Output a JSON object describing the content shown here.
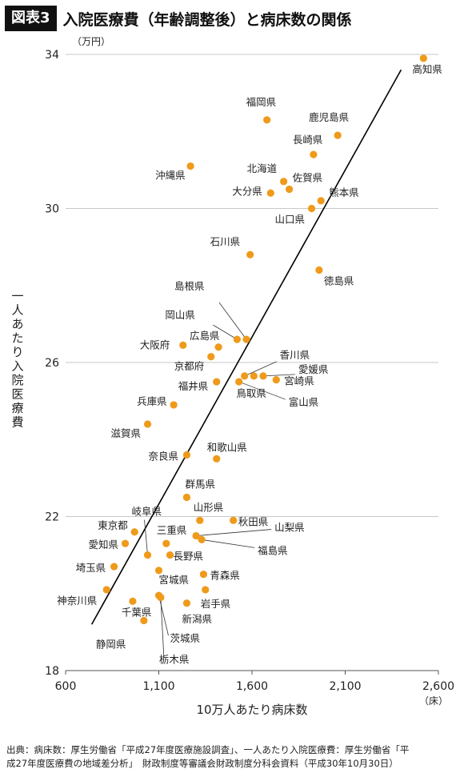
{
  "header": {
    "badge": "図表3",
    "title": "入院医療費（年齢調整後）と病床数の関係"
  },
  "chart_data": {
    "type": "scatter",
    "title": "入院医療費（年齢調整後）と病床数の関係",
    "xlabel": "10万人あたり病床数",
    "x_unit": "（床）",
    "ylabel": "一人あたり入院医療費",
    "y_unit": "（万円）",
    "xlim": [
      600,
      2600
    ],
    "ylim": [
      18,
      34
    ],
    "xticks": [
      600,
      1100,
      1600,
      2100,
      2600
    ],
    "xtick_labels": [
      "600",
      "1,100",
      "1,600",
      "2,100",
      "2,600"
    ],
    "yticks": [
      18,
      22,
      26,
      30,
      34
    ],
    "grid": "horizontal",
    "trendline": {
      "x": [
        740,
        2400
      ],
      "y": [
        19.2,
        33.6
      ]
    },
    "points": [
      {
        "label": "高知県",
        "x": 2520,
        "y": 33.9
      },
      {
        "label": "福岡県",
        "x": 1680,
        "y": 32.3
      },
      {
        "label": "鹿児島県",
        "x": 2060,
        "y": 31.9
      },
      {
        "label": "長崎県",
        "x": 1930,
        "y": 31.4
      },
      {
        "label": "沖縄県",
        "x": 1270,
        "y": 31.1
      },
      {
        "label": "北海道",
        "x": 1770,
        "y": 30.7
      },
      {
        "label": "佐賀県",
        "x": 1800,
        "y": 30.5
      },
      {
        "label": "大分県",
        "x": 1700,
        "y": 30.4
      },
      {
        "label": "熊本県",
        "x": 1970,
        "y": 30.2
      },
      {
        "label": "山口県",
        "x": 1920,
        "y": 30.0
      },
      {
        "label": "石川県",
        "x": 1590,
        "y": 28.8
      },
      {
        "label": "徳島県",
        "x": 1960,
        "y": 28.4
      },
      {
        "label": "島根県",
        "x": 1570,
        "y": 26.6
      },
      {
        "label": "岡山県",
        "x": 1520,
        "y": 26.6
      },
      {
        "label": "広島県",
        "x": 1420,
        "y": 26.4
      },
      {
        "label": "大阪府",
        "x": 1230,
        "y": 26.45
      },
      {
        "label": "京都府",
        "x": 1380,
        "y": 26.15
      },
      {
        "label": "香川県",
        "x": 1560,
        "y": 25.65
      },
      {
        "label": "愛媛県",
        "x": 1660,
        "y": 25.65
      },
      {
        "label": "鳥取県",
        "x": 1610,
        "y": 25.65
      },
      {
        "label": "宮崎県",
        "x": 1730,
        "y": 25.55
      },
      {
        "label": "富山県",
        "x": 1530,
        "y": 25.5
      },
      {
        "label": "福井県",
        "x": 1410,
        "y": 25.5
      },
      {
        "label": "兵庫県",
        "x": 1180,
        "y": 24.9
      },
      {
        "label": "滋賀県",
        "x": 1040,
        "y": 24.4
      },
      {
        "label": "奈良県",
        "x": 1250,
        "y": 23.6
      },
      {
        "label": "和歌山県",
        "x": 1410,
        "y": 23.5
      },
      {
        "label": "群馬県",
        "x": 1250,
        "y": 22.5
      },
      {
        "label": "山形県",
        "x": 1320,
        "y": 21.9
      },
      {
        "label": "秋田県",
        "x": 1500,
        "y": 21.9
      },
      {
        "label": "東京都",
        "x": 970,
        "y": 21.6
      },
      {
        "label": "三重県",
        "x": 1140,
        "y": 21.3
      },
      {
        "label": "山梨県",
        "x": 1300,
        "y": 21.5
      },
      {
        "label": "福島県",
        "x": 1330,
        "y": 21.4
      },
      {
        "label": "愛知県",
        "x": 920,
        "y": 21.3
      },
      {
        "label": "岐阜県",
        "x": 1040,
        "y": 21.0
      },
      {
        "label": "長野県",
        "x": 1160,
        "y": 21.0
      },
      {
        "label": "埼玉県",
        "x": 860,
        "y": 20.7
      },
      {
        "label": "宮城県",
        "x": 1100,
        "y": 20.6
      },
      {
        "label": "青森県",
        "x": 1340,
        "y": 20.5
      },
      {
        "label": "岩手県",
        "x": 1350,
        "y": 20.1
      },
      {
        "label": "神奈川県",
        "x": 820,
        "y": 20.1
      },
      {
        "label": "茨城県",
        "x": 1100,
        "y": 19.95
      },
      {
        "label": "栃木県",
        "x": 1110,
        "y": 19.9
      },
      {
        "label": "千葉県",
        "x": 960,
        "y": 19.8
      },
      {
        "label": "新潟県",
        "x": 1250,
        "y": 19.75
      },
      {
        "label": "静岡県",
        "x": 1020,
        "y": 19.3
      }
    ]
  },
  "colors": {
    "point": "#ef9a1a",
    "grid": "#c8c8c8",
    "line": "#000000"
  },
  "source": {
    "line1": "出典：病床数：厚生労働省「平成27年度医療施設調査」、一人あたり入院医療費：厚生労働省「平",
    "line2": "成27年度医療費の地域差分析」　財政制度等審議会財政制度分科会資料（平成30年10月30日）"
  }
}
